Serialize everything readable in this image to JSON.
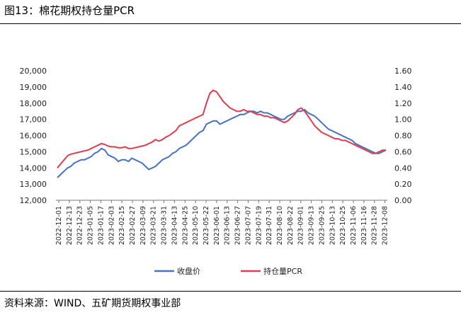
{
  "title": "图13：棉花期权持仓量PCR",
  "source": "资料来源：WIND、五矿期货期权事业部",
  "chart_data": {
    "type": "line",
    "left_axis": {
      "ticks": [
        "12,000",
        "13,000",
        "14,000",
        "15,000",
        "16,000",
        "17,000",
        "18,000",
        "19,000",
        "20,000"
      ],
      "min": 12000,
      "max": 20000
    },
    "right_axis": {
      "ticks": [
        "0.00",
        "0.20",
        "0.40",
        "0.60",
        "0.80",
        "1.00",
        "1.20",
        "1.40",
        "1.60"
      ],
      "min": 0,
      "max": 1.6
    },
    "x_ticks": [
      "2022-12-01",
      "2022-12-13",
      "2022-12-23",
      "2023-01-05",
      "2023-01-17",
      "2023-02-03",
      "2023-02-15",
      "2023-02-27",
      "2023-03-09",
      "2023-03-21",
      "2023-03-31",
      "2023-04-13",
      "2023-04-25",
      "2023-05-10",
      "2023-05-22",
      "2023-06-01",
      "2023-06-13",
      "2023-06-27",
      "2023-07-07",
      "2023-07-19",
      "2023-07-31",
      "2023-08-10",
      "2023-08-22",
      "2023-09-01",
      "2023-09-13",
      "2023-09-25",
      "2023-10-13",
      "2023-10-25",
      "2023-11-06",
      "2023-11-16",
      "2023-11-28",
      "2023-12-08"
    ],
    "series": [
      {
        "name": "收盘价",
        "axis": "left",
        "color": "#4472c4",
        "values": [
          13400,
          13600,
          13800,
          14000,
          14100,
          14300,
          14400,
          14500,
          14500,
          14600,
          14700,
          14900,
          15000,
          15200,
          15100,
          14800,
          14700,
          14600,
          14400,
          14500,
          14500,
          14400,
          14600,
          14500,
          14400,
          14300,
          14100,
          13900,
          14000,
          14100,
          14300,
          14500,
          14600,
          14700,
          14900,
          15000,
          15200,
          15300,
          15400,
          15600,
          15800,
          16000,
          16200,
          16300,
          16700,
          16800,
          16900,
          16900,
          16700,
          16800,
          16900,
          17000,
          17100,
          17200,
          17300,
          17300,
          17400,
          17500,
          17500,
          17400,
          17500,
          17400,
          17400,
          17300,
          17200,
          17100,
          17000,
          17000,
          17200,
          17300,
          17400,
          17500,
          17500,
          17600,
          17400,
          17300,
          17200,
          17000,
          16800,
          16600,
          16400,
          16300,
          16200,
          16100,
          16000,
          15900,
          15800,
          15700,
          15500,
          15400,
          15300,
          15200,
          15100,
          15000,
          14900,
          14900,
          15000,
          15100
        ]
      },
      {
        "name": "持仓量PCR",
        "axis": "right",
        "color": "#e03c50",
        "values": [
          0.4,
          0.45,
          0.5,
          0.55,
          0.57,
          0.58,
          0.59,
          0.6,
          0.61,
          0.62,
          0.64,
          0.66,
          0.68,
          0.7,
          0.69,
          0.67,
          0.66,
          0.66,
          0.65,
          0.65,
          0.66,
          0.64,
          0.64,
          0.65,
          0.66,
          0.67,
          0.68,
          0.7,
          0.72,
          0.75,
          0.73,
          0.75,
          0.78,
          0.8,
          0.83,
          0.86,
          0.92,
          0.94,
          0.96,
          0.98,
          1.0,
          1.02,
          1.04,
          1.06,
          1.2,
          1.32,
          1.36,
          1.34,
          1.28,
          1.22,
          1.18,
          1.14,
          1.12,
          1.1,
          1.1,
          1.12,
          1.1,
          1.1,
          1.08,
          1.06,
          1.06,
          1.04,
          1.04,
          1.02,
          1.02,
          1.0,
          0.98,
          0.96,
          0.98,
          1.02,
          1.06,
          1.12,
          1.14,
          1.1,
          1.04,
          0.98,
          0.92,
          0.88,
          0.84,
          0.82,
          0.8,
          0.78,
          0.76,
          0.76,
          0.74,
          0.74,
          0.72,
          0.7,
          0.68,
          0.66,
          0.64,
          0.62,
          0.6,
          0.58,
          0.58,
          0.6,
          0.62,
          0.62
        ]
      }
    ],
    "grid": false,
    "legend": "bottom"
  }
}
